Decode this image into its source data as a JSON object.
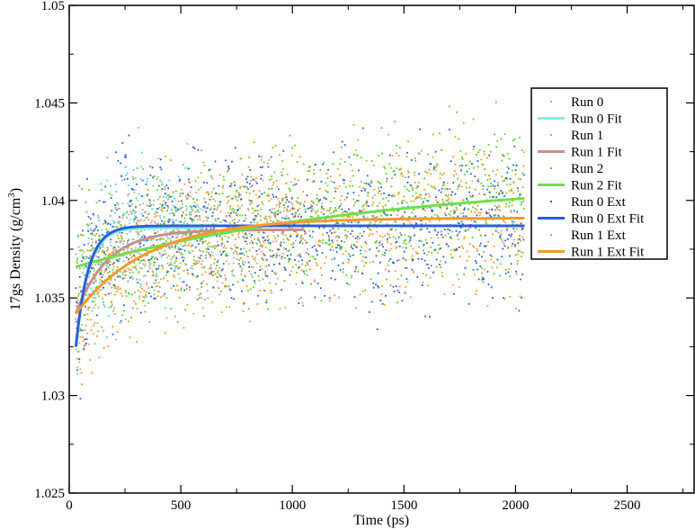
{
  "chart_data": {
    "type": "scatter",
    "xlabel": "Time (ps)",
    "ylabel": "17gs Density (g/cm",
    "ylabel_sup": "3",
    "ylabel_end": ")",
    "xlim": [
      0,
      2800
    ],
    "ylim": [
      1.025,
      1.05
    ],
    "x_ticks": [
      {
        "value": 0,
        "label": "0"
      },
      {
        "value": 500,
        "label": "500"
      },
      {
        "value": 1000,
        "label": "1000"
      },
      {
        "value": 1500,
        "label": "1500"
      },
      {
        "value": 2000,
        "label": "2000"
      },
      {
        "value": 2500,
        "label": "2500"
      }
    ],
    "y_ticks": [
      {
        "value": 1.025,
        "label": "1.025"
      },
      {
        "value": 1.03,
        "label": "1.03"
      },
      {
        "value": 1.035,
        "label": "1.035"
      },
      {
        "value": 1.04,
        "label": "1.04"
      },
      {
        "value": 1.045,
        "label": "1.045"
      },
      {
        "value": 1.05,
        "label": "1.05"
      }
    ],
    "legend_position": "top-right",
    "series": [
      {
        "name": "Run 0",
        "kind": "points",
        "color": "#4fd8d0",
        "x_range": [
          30,
          600
        ],
        "mean": 1.0386,
        "sd": 0.0022
      },
      {
        "name": "Run 0 Fit",
        "kind": "fit",
        "color": "#7ff0e6",
        "x_range": [
          30,
          600
        ],
        "y0": 1.0325,
        "yinf": 1.0386,
        "tau": 55
      },
      {
        "name": "Run 1",
        "kind": "points",
        "color": "#c8a080",
        "x_range": [
          30,
          1050
        ],
        "mean": 1.0384,
        "sd": 0.0022
      },
      {
        "name": "Run 1 Fit",
        "kind": "fit",
        "color": "#c49090",
        "x_range": [
          30,
          1050
        ],
        "y0": 1.0342,
        "yinf": 1.0385,
        "tau": 140
      },
      {
        "name": "Run 2",
        "kind": "points",
        "color": "#5ad02a",
        "x_range": [
          30,
          2040
        ],
        "mean": 1.0392,
        "sd": 0.0025
      },
      {
        "name": "Run 2 Fit",
        "kind": "fit",
        "color": "#6ee04a",
        "x_range": [
          30,
          2040
        ],
        "y0": 1.0366,
        "yinf": 1.0412,
        "tau": 1400
      },
      {
        "name": "Run 0 Ext",
        "kind": "points",
        "color": "#2a5fd8",
        "x_range": [
          30,
          2040
        ],
        "mean": 1.0386,
        "sd": 0.0026
      },
      {
        "name": "Run 0 Ext Fit",
        "kind": "fit",
        "color": "#2a5fd8",
        "x_range": [
          30,
          2040
        ],
        "y0": 1.0325,
        "yinf": 1.0387,
        "tau": 55
      },
      {
        "name": "Run 1 Ext",
        "kind": "points",
        "color": "#f29a2e",
        "x_range": [
          30,
          2040
        ],
        "mean": 1.0389,
        "sd": 0.0024
      },
      {
        "name": "Run 1 Ext Fit",
        "kind": "fit",
        "color": "#f29a2e",
        "x_range": [
          30,
          2040
        ],
        "y0": 1.0342,
        "yinf": 1.0391,
        "tau": 320
      }
    ]
  }
}
